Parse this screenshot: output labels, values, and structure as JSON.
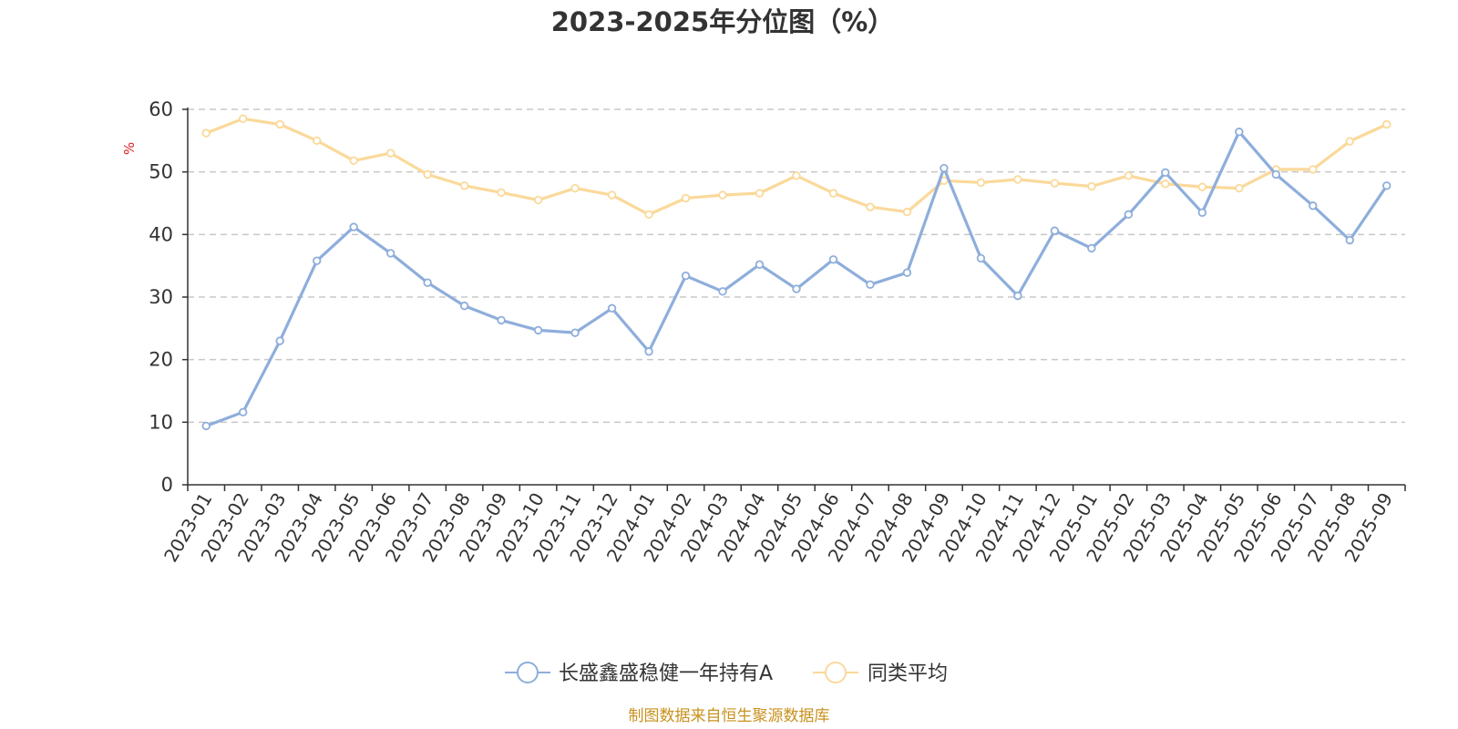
{
  "chart_data": {
    "type": "line",
    "title": "2023-2025年分位图（%）",
    "xlabel": "",
    "ylabel": "%",
    "ylim": [
      0,
      60
    ],
    "yticks": [
      0,
      10,
      20,
      30,
      40,
      50,
      60
    ],
    "grid": true,
    "legend_position": "bottom-center",
    "categories": [
      "2023-01",
      "2023-02",
      "2023-03",
      "2023-04",
      "2023-05",
      "2023-06",
      "2023-07",
      "2023-08",
      "2023-09",
      "2023-10",
      "2023-11",
      "2023-12",
      "2024-01",
      "2024-02",
      "2024-03",
      "2024-04",
      "2024-05",
      "2024-06",
      "2024-07",
      "2024-08",
      "2024-09",
      "2024-10",
      "2024-11",
      "2024-12",
      "2025-01",
      "2025-02",
      "2025-03",
      "2025-04",
      "2025-05",
      "2025-06",
      "2025-07",
      "2025-08",
      "2025-09"
    ],
    "series": [
      {
        "name": "长盛鑫盛稳健一年持有A",
        "color": "#8eaedb",
        "values": [
          9.4,
          11.6,
          23.0,
          35.8,
          41.2,
          37.0,
          32.3,
          28.6,
          26.3,
          24.7,
          24.3,
          28.2,
          21.3,
          33.4,
          30.9,
          35.2,
          31.3,
          36.0,
          32.0,
          33.9,
          50.6,
          36.2,
          30.2,
          40.6,
          37.8,
          43.2,
          49.9,
          43.5,
          56.4,
          49.6,
          44.6,
          39.1,
          47.8
        ]
      },
      {
        "name": "同类平均",
        "color": "#fad99a",
        "values": [
          56.2,
          58.5,
          57.6,
          55.0,
          51.8,
          53.0,
          49.6,
          47.8,
          46.7,
          45.5,
          47.4,
          46.3,
          43.2,
          45.8,
          46.3,
          46.6,
          49.4,
          46.6,
          44.4,
          43.6,
          48.6,
          48.3,
          48.8,
          48.2,
          47.7,
          49.4,
          48.1,
          47.6,
          47.4,
          50.4,
          50.4,
          54.9,
          57.6
        ]
      }
    ]
  },
  "source": {
    "text": "制图数据来自恒生聚源数据库",
    "color": "#c8911e"
  }
}
